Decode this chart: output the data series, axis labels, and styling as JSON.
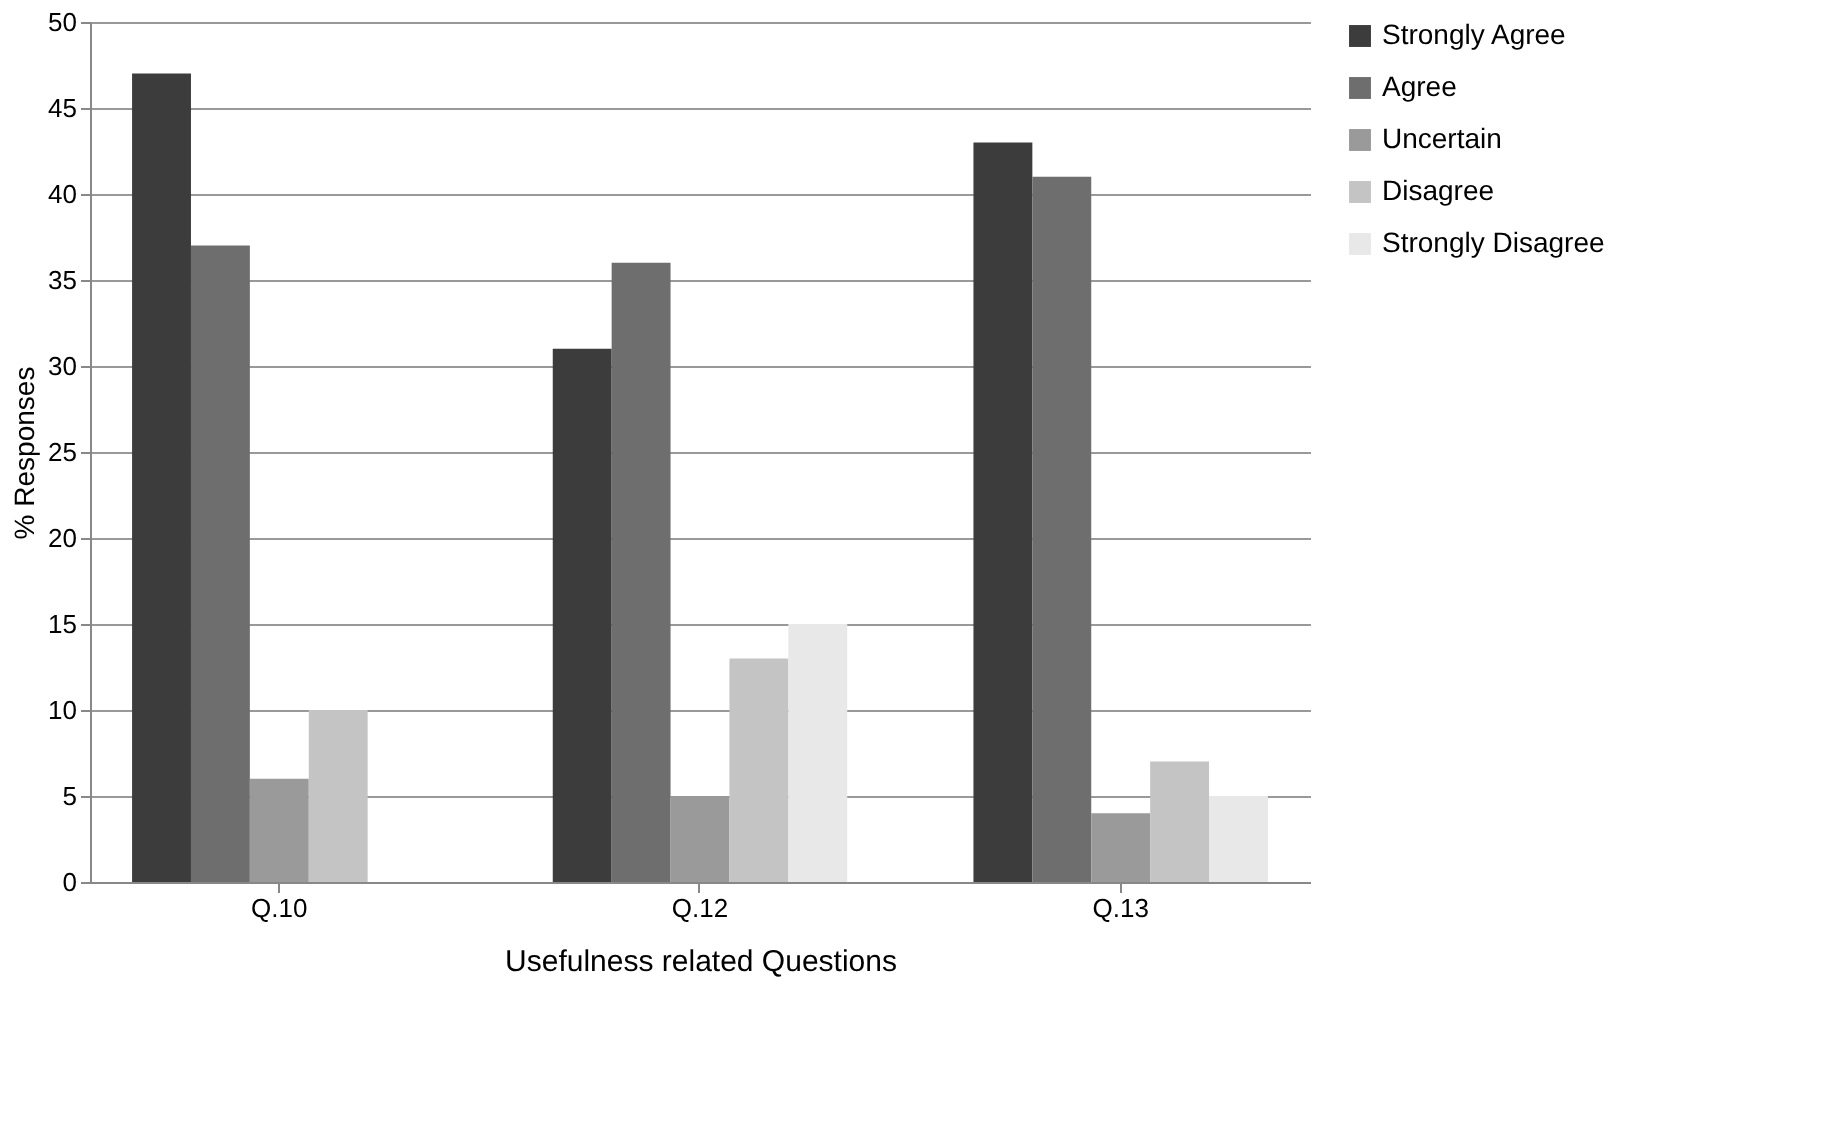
{
  "chart_data": {
    "type": "bar",
    "xlabel": "Usefulness related Questions",
    "ylabel": "% Responses",
    "categories": [
      "Q.10",
      "Q.12",
      "Q.13"
    ],
    "series": [
      {
        "name": "Strongly Agree",
        "color": "#3c3c3c",
        "values": [
          47,
          31,
          43
        ]
      },
      {
        "name": "Agree",
        "color": "#6e6e6e",
        "values": [
          37,
          36,
          41
        ]
      },
      {
        "name": "Uncertain",
        "color": "#9a9a9a",
        "values": [
          6,
          5,
          4
        ]
      },
      {
        "name": "Disagree",
        "color": "#c4c4c4",
        "values": [
          10,
          13,
          7
        ]
      },
      {
        "name": "Strongly Disagree",
        "color": "#e8e8e8",
        "values": [
          0,
          15,
          5
        ]
      }
    ],
    "ylim": [
      0,
      50
    ],
    "yticks": [
      0,
      5,
      10,
      15,
      20,
      25,
      30,
      35,
      40,
      45,
      50
    ],
    "grid": "y",
    "legend": "right"
  }
}
